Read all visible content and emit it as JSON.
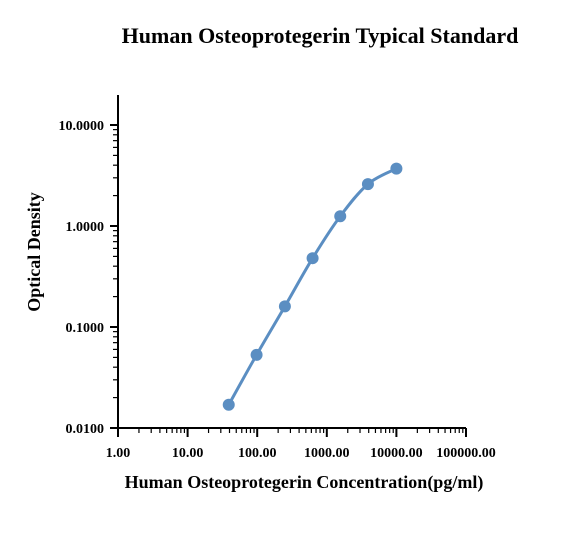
{
  "chart_data": {
    "type": "line",
    "title": "Human Osteoprotegerin Typical Standard",
    "xlabel": "Human Osteoprotegerin Concentration(pg/ml)",
    "ylabel": "Optical Density",
    "x_scale": "log",
    "y_scale": "log",
    "xlim": [
      1,
      100000
    ],
    "ylim": [
      0.01,
      10
    ],
    "x_tick_labels": [
      "1.00",
      "10.00",
      "100.00",
      "1000.00",
      "10000.00",
      "100000.00"
    ],
    "y_tick_labels": [
      "0.0100",
      "0.1000",
      "1.0000",
      "10.0000"
    ],
    "grid": false,
    "series": [
      {
        "x": [
          39,
          98,
          250,
          625,
          1560,
          3900,
          10000
        ],
        "y": [
          0.017,
          0.053,
          0.16,
          0.48,
          1.25,
          2.6,
          3.7
        ],
        "color": "#5b8ec2",
        "marker": "circle"
      }
    ]
  }
}
